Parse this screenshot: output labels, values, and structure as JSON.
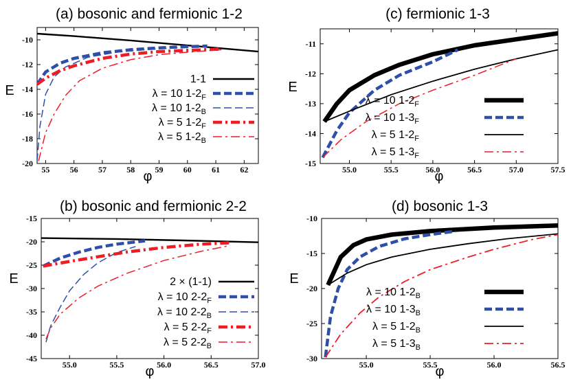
{
  "chart_data": [
    {
      "type": "line",
      "title": "(a) bosonic and fermionic 1-2",
      "xlabel": "φ",
      "ylabel": "E",
      "xlim": [
        54.7,
        62.5
      ],
      "ylim": [
        -20,
        -9
      ],
      "xticks": [
        55,
        56,
        57,
        58,
        59,
        60,
        61,
        62
      ],
      "yticks": [
        -20,
        -18,
        -16,
        -14,
        -12,
        -10
      ],
      "legend_position": "right",
      "series": [
        {
          "lambda": "",
          "name": "1-1",
          "sub": "",
          "color": "#000000",
          "style": "solid",
          "width": 2.4,
          "points": [
            [
              54.7,
              -9.5
            ],
            [
              56,
              -9.7
            ],
            [
              58,
              -10.05
            ],
            [
              60,
              -10.45
            ],
            [
              62.5,
              -10.95
            ]
          ]
        },
        {
          "lambda": "λ = 10",
          "name": "1-2",
          "sub": "F",
          "color": "#2e4fa8",
          "style": "dash",
          "width": 4.5,
          "points": [
            [
              54.7,
              -13.6
            ],
            [
              55,
              -12.6
            ],
            [
              55.5,
              -11.9
            ],
            [
              56,
              -11.5
            ],
            [
              57,
              -11.05
            ],
            [
              58,
              -10.8
            ],
            [
              59,
              -10.65
            ],
            [
              60,
              -10.55
            ],
            [
              60.7,
              -10.5
            ]
          ]
        },
        {
          "lambda": "λ = 10",
          "name": "1-2",
          "sub": "B",
          "color": "#2e4fa8",
          "style": "dash",
          "width": 1.5,
          "points": [
            [
              54.7,
              -19.8
            ],
            [
              54.8,
              -17
            ],
            [
              55,
              -14.4
            ],
            [
              55.3,
              -13
            ],
            [
              55.7,
              -12.2
            ],
            [
              56.5,
              -11.4
            ],
            [
              57.5,
              -11
            ],
            [
              58.5,
              -10.8
            ],
            [
              59.5,
              -10.65
            ],
            [
              60.5,
              -10.55
            ]
          ]
        },
        {
          "lambda": "λ = 5",
          "name": "1-2",
          "sub": "F",
          "color": "#ee1c25",
          "style": "dashdot",
          "width": 4.5,
          "points": [
            [
              54.7,
              -13.6
            ],
            [
              55,
              -13.1
            ],
            [
              55.5,
              -12.5
            ],
            [
              56,
              -12.1
            ],
            [
              57,
              -11.5
            ],
            [
              58,
              -11.15
            ],
            [
              59,
              -10.95
            ],
            [
              60,
              -10.85
            ],
            [
              61.2,
              -10.75
            ]
          ]
        },
        {
          "lambda": "λ = 5",
          "name": "1-2",
          "sub": "B",
          "color": "#ee1c25",
          "style": "dashdot",
          "width": 1.5,
          "points": [
            [
              54.75,
              -19.8
            ],
            [
              55,
              -17.5
            ],
            [
              55.3,
              -16
            ],
            [
              55.7,
              -14.5
            ],
            [
              56.2,
              -13.3
            ],
            [
              57,
              -12.3
            ],
            [
              58,
              -11.6
            ],
            [
              59,
              -11.2
            ],
            [
              60,
              -11
            ],
            [
              61.2,
              -10.8
            ]
          ]
        }
      ]
    },
    {
      "type": "line",
      "title": "(c) fermionic 1-3",
      "xlabel": "φ",
      "ylabel": "E",
      "xlim": [
        54.65,
        57.5
      ],
      "ylim": [
        -15,
        -10.5
      ],
      "xticks": [
        55.0,
        55.5,
        56.0,
        56.5,
        57.0,
        57.5
      ],
      "yticks": [
        -15,
        -14,
        -13,
        -12,
        -11
      ],
      "legend_position": "bottom-right",
      "series": [
        {
          "lambda": "λ = 10",
          "name": "1-2",
          "sub": "F",
          "color": "#000000",
          "style": "solid",
          "width": 6.5,
          "points": [
            [
              54.7,
              -13.6
            ],
            [
              54.85,
              -13.0
            ],
            [
              55,
              -12.55
            ],
            [
              55.3,
              -12.05
            ],
            [
              55.6,
              -11.7
            ],
            [
              56,
              -11.35
            ],
            [
              56.5,
              -11.05
            ],
            [
              57,
              -10.85
            ],
            [
              57.5,
              -10.65
            ]
          ]
        },
        {
          "lambda": "λ = 10",
          "name": "1-3",
          "sub": "F",
          "color": "#2e4fa8",
          "style": "dash",
          "width": 4.5,
          "points": [
            [
              54.68,
              -14.8
            ],
            [
              54.85,
              -13.9
            ],
            [
              55,
              -13.3
            ],
            [
              55.3,
              -12.55
            ],
            [
              55.6,
              -12.05
            ],
            [
              56,
              -11.6
            ],
            [
              56.3,
              -11.2
            ]
          ]
        },
        {
          "lambda": "λ = 5",
          "name": "1-2",
          "sub": "F",
          "color": "#000000",
          "style": "solid",
          "width": 1.8,
          "points": [
            [
              54.7,
              -13.6
            ],
            [
              55,
              -13.25
            ],
            [
              55.5,
              -12.7
            ],
            [
              56,
              -12.25
            ],
            [
              56.5,
              -11.85
            ],
            [
              57,
              -11.5
            ],
            [
              57.5,
              -11.2
            ]
          ]
        },
        {
          "lambda": "λ = 5",
          "name": "1-3",
          "sub": "F",
          "color": "#ee1c25",
          "style": "dashdot",
          "width": 1.5,
          "points": [
            [
              54.68,
              -14.8
            ],
            [
              54.9,
              -14.2
            ],
            [
              55.2,
              -13.6
            ],
            [
              55.6,
              -13.0
            ],
            [
              56,
              -12.55
            ],
            [
              56.5,
              -12.05
            ],
            [
              57,
              -11.5
            ]
          ]
        }
      ]
    },
    {
      "type": "line",
      "title": "(b) bosonic and fermionic 2-2",
      "xlabel": "φ",
      "ylabel": "E",
      "xlim": [
        54.7,
        57.0
      ],
      "ylim": [
        -45,
        -15
      ],
      "xticks": [
        55.0,
        55.5,
        56.0,
        56.5,
        57.0
      ],
      "yticks": [
        -45,
        -40,
        -35,
        -30,
        -25,
        -20,
        -15
      ],
      "legend_position": "right",
      "series": [
        {
          "lambda": "",
          "name": "2 × (1-1)",
          "sub": "",
          "color": "#000000",
          "style": "solid",
          "width": 2.4,
          "points": [
            [
              54.7,
              -19.2
            ],
            [
              55.5,
              -19.4
            ],
            [
              56.2,
              -19.7
            ],
            [
              57,
              -20.1
            ]
          ]
        },
        {
          "lambda": "λ = 10",
          "name": "2-2",
          "sub": "F",
          "color": "#2e4fa8",
          "style": "dash",
          "width": 4.5,
          "points": [
            [
              54.72,
              -25.2
            ],
            [
              54.9,
              -23.5
            ],
            [
              55.1,
              -22.2
            ],
            [
              55.3,
              -21.2
            ],
            [
              55.5,
              -20.5
            ],
            [
              55.8,
              -19.8
            ]
          ]
        },
        {
          "lambda": "λ = 10",
          "name": "2-2",
          "sub": "B",
          "color": "#2e4fa8",
          "style": "dash",
          "width": 1.5,
          "points": [
            [
              54.75,
              -41.5
            ],
            [
              54.8,
              -38
            ],
            [
              54.9,
              -34
            ],
            [
              55,
              -30.5
            ],
            [
              55.15,
              -27
            ],
            [
              55.3,
              -24.5
            ],
            [
              55.5,
              -22.3
            ],
            [
              55.7,
              -21
            ]
          ]
        },
        {
          "lambda": "λ = 5",
          "name": "2-2",
          "sub": "F",
          "color": "#ee1c25",
          "style": "dashdot",
          "width": 4.5,
          "points": [
            [
              54.72,
              -25.2
            ],
            [
              55,
              -24.2
            ],
            [
              55.3,
              -23.2
            ],
            [
              55.6,
              -22.2
            ],
            [
              56,
              -21.2
            ],
            [
              56.4,
              -20.5
            ],
            [
              56.7,
              -20.2
            ]
          ]
        },
        {
          "lambda": "λ = 5",
          "name": "2-2",
          "sub": "B",
          "color": "#ee1c25",
          "style": "dashdot",
          "width": 1.5,
          "points": [
            [
              54.75,
              -40.8
            ],
            [
              54.8,
              -38.5
            ],
            [
              54.9,
              -35.5
            ],
            [
              55.1,
              -32
            ],
            [
              55.3,
              -29.5
            ],
            [
              55.6,
              -26.8
            ],
            [
              56,
              -24
            ],
            [
              56.4,
              -22
            ],
            [
              56.7,
              -20.8
            ]
          ]
        }
      ]
    },
    {
      "type": "line",
      "title": "(d) bosonic 1-3",
      "xlabel": "φ",
      "ylabel": "E",
      "xlim": [
        54.65,
        56.5
      ],
      "ylim": [
        -30,
        -10
      ],
      "xticks": [
        55.0,
        55.5,
        56.0,
        56.5
      ],
      "yticks": [
        -30,
        -25,
        -20,
        -15,
        -10
      ],
      "legend_position": "bottom-right",
      "series": [
        {
          "lambda": "λ = 10",
          "name": "1-2",
          "sub": "B",
          "color": "#000000",
          "style": "solid",
          "width": 6.5,
          "points": [
            [
              54.7,
              -19.5
            ],
            [
              54.8,
              -15.5
            ],
            [
              54.9,
              -13.8
            ],
            [
              55,
              -13.0
            ],
            [
              55.2,
              -12.3
            ],
            [
              55.5,
              -11.8
            ],
            [
              56,
              -11.3
            ],
            [
              56.5,
              -11.0
            ]
          ]
        },
        {
          "lambda": "λ = 10",
          "name": "1-3",
          "sub": "B",
          "color": "#2e4fa8",
          "style": "dash",
          "width": 4.5,
          "points": [
            [
              54.68,
              -29.8
            ],
            [
              54.72,
              -24
            ],
            [
              54.78,
              -20
            ],
            [
              54.85,
              -17.3
            ],
            [
              54.95,
              -15.5
            ],
            [
              55.1,
              -14.0
            ],
            [
              55.3,
              -12.9
            ],
            [
              55.5,
              -12.3
            ],
            [
              55.7,
              -11.8
            ]
          ]
        },
        {
          "lambda": "λ = 5",
          "name": "1-2",
          "sub": "B",
          "color": "#000000",
          "style": "solid",
          "width": 1.8,
          "points": [
            [
              54.7,
              -19.5
            ],
            [
              54.85,
              -17.8
            ],
            [
              55,
              -16.6
            ],
            [
              55.2,
              -15.5
            ],
            [
              55.5,
              -14.4
            ],
            [
              55.8,
              -13.6
            ],
            [
              56.1,
              -12.9
            ],
            [
              56.5,
              -12.2
            ]
          ]
        },
        {
          "lambda": "λ = 5",
          "name": "1-3",
          "sub": "B",
          "color": "#ee1c25",
          "style": "dashdot",
          "width": 1.8,
          "points": [
            [
              54.68,
              -29.8
            ],
            [
              54.8,
              -26.5
            ],
            [
              54.95,
              -23.5
            ],
            [
              55.1,
              -21.2
            ],
            [
              55.3,
              -19.0
            ],
            [
              55.5,
              -17.3
            ],
            [
              55.8,
              -15.5
            ],
            [
              56,
              -14.4
            ],
            [
              56.3,
              -13.0
            ],
            [
              56.5,
              -12.3
            ]
          ]
        }
      ]
    }
  ]
}
